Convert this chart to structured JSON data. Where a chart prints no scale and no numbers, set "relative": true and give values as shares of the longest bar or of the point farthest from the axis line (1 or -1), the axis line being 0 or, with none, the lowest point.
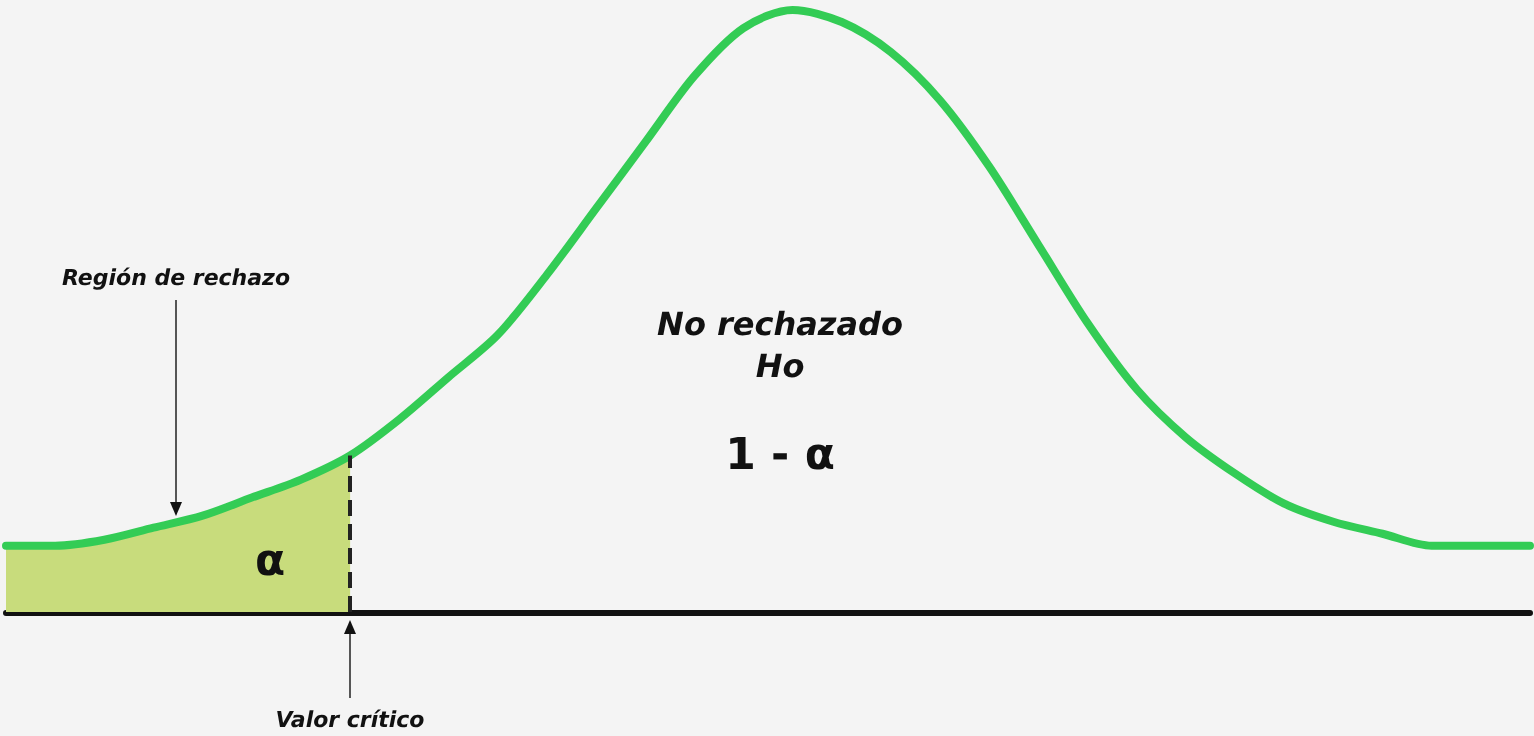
{
  "chart_data": {
    "type": "line",
    "relative": true,
    "tick_labels": false,
    "categories": [
      null,
      null,
      null,
      null,
      null,
      null,
      null,
      null,
      null,
      null,
      null,
      null,
      null,
      null,
      null,
      null,
      null,
      null,
      null,
      null,
      null,
      null,
      null,
      null,
      null,
      null,
      null,
      null,
      null,
      null,
      null,
      null
    ],
    "series": [
      {
        "type": "area",
        "color": "#c8dc7c",
        "values": [
          0.11,
          0.11,
          0.12,
          0.14,
          0.16,
          0.19,
          0.22,
          0.26,
          null,
          null,
          null,
          null,
          null,
          null,
          null,
          null,
          null,
          null,
          null,
          null,
          null,
          null,
          null,
          null,
          null,
          null,
          null,
          null,
          null,
          null,
          null,
          null
        ]
      },
      {
        "type": "line",
        "color": "#33cc55",
        "values": [
          0.11,
          0.11,
          0.12,
          0.14,
          0.16,
          0.19,
          0.22,
          0.26,
          0.32,
          0.39,
          0.46,
          0.56,
          0.67,
          0.78,
          0.89,
          0.97,
          1.0,
          0.98,
          0.93,
          0.85,
          0.74,
          0.61,
          0.48,
          0.37,
          0.29,
          0.23,
          0.18,
          0.15,
          0.13,
          0.11,
          0.11,
          0.11
        ]
      }
    ],
    "annotations": [
      "Región de rechazo",
      "No rechazado",
      "Ho",
      "1 - α",
      "α",
      "Valor crítico"
    ]
  }
}
